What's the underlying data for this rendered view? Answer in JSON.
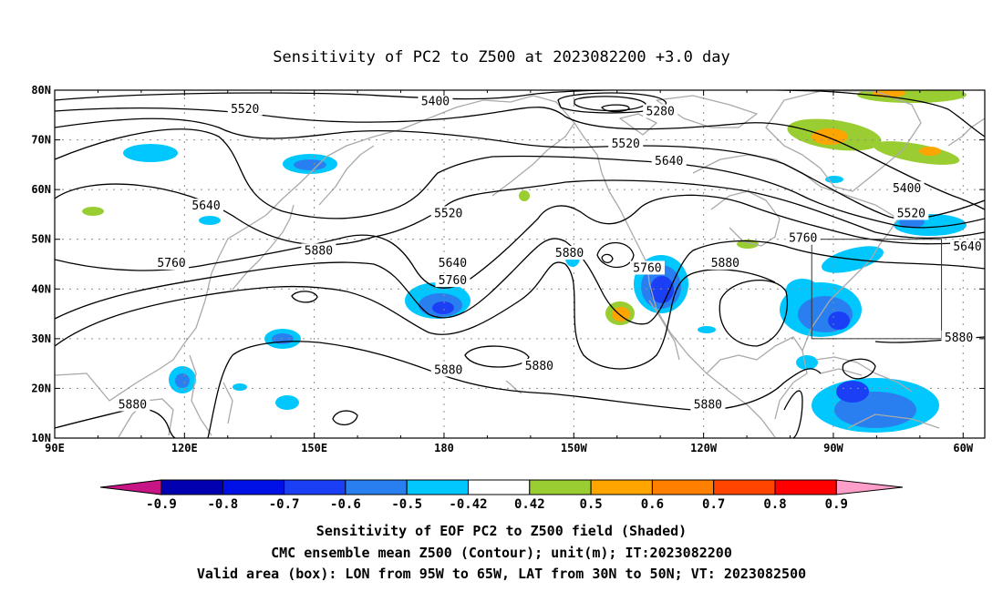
{
  "title": "Sensitivity of PC2 to Z500 at 2023082200 +3.0 day",
  "lat_ticks": [
    "80N",
    "70N",
    "60N",
    "50N",
    "40N",
    "30N",
    "20N",
    "10N"
  ],
  "lon_ticks": [
    "90E",
    "120E",
    "150E",
    "180",
    "150W",
    "120W",
    "90W",
    "60W"
  ],
  "contour_labels": [
    {
      "text": "5520",
      "lon": 134,
      "lat": 76
    },
    {
      "text": "5400",
      "lon": 178,
      "lat": 77.5
    },
    {
      "text": "5280",
      "lon": -130,
      "lat": 75.5
    },
    {
      "text": "5520",
      "lon": -138,
      "lat": 69
    },
    {
      "text": "5640",
      "lon": -128,
      "lat": 65.5
    },
    {
      "text": "5400",
      "lon": -73,
      "lat": 60
    },
    {
      "text": "5520",
      "lon": -72,
      "lat": 55
    },
    {
      "text": "5640",
      "lon": 125,
      "lat": 56.5
    },
    {
      "text": "5520",
      "lon": -179,
      "lat": 55
    },
    {
      "text": "5760",
      "lon": -97,
      "lat": 50
    },
    {
      "text": "5640",
      "lon": -59,
      "lat": 48.3
    },
    {
      "text": "5760",
      "lon": 117,
      "lat": 45
    },
    {
      "text": "5880",
      "lon": 151,
      "lat": 47.5
    },
    {
      "text": "5880",
      "lon": -151,
      "lat": 47
    },
    {
      "text": "5880",
      "lon": -115,
      "lat": 45
    },
    {
      "text": "5640",
      "lon": -178,
      "lat": 45
    },
    {
      "text": "5760",
      "lon": -178,
      "lat": 41.5
    },
    {
      "text": "5760",
      "lon": -133,
      "lat": 44
    },
    {
      "text": "5880",
      "lon": -61,
      "lat": 30
    },
    {
      "text": "5880",
      "lon": -179,
      "lat": 23.5
    },
    {
      "text": "5880",
      "lon": -158,
      "lat": 24.3
    },
    {
      "text": "5880",
      "lon": -119,
      "lat": 16.5
    },
    {
      "text": "5880",
      "lon": 108,
      "lat": 16.5
    }
  ],
  "colorbar": {
    "labels": [
      "-0.9",
      "-0.8",
      "-0.7",
      "-0.6",
      "-0.5",
      "-0.42",
      "0.42",
      "0.5",
      "0.6",
      "0.7",
      "0.8",
      "0.9"
    ],
    "colors": {
      "min_triangle": "#c71585",
      "bins": [
        "#0000b0",
        "#0011e8",
        "#1a3ff5",
        "#2a7ff0",
        "#00c8ff",
        "#ffffff",
        "#9acd32",
        "#ffa500",
        "#ff7f00",
        "#ff4500",
        "#ff0000"
      ],
      "max_triangle": "#ff9ec8"
    }
  },
  "caption": {
    "line1": "Sensitivity of EOF PC2 to Z500 field (Shaded)",
    "line2": "CMC ensemble mean Z500 (Contour); unit(m); IT:2023082200",
    "line3": "Valid area (box): LON from 95W to 65W, LAT from 30N to 50N; VT: 2023082500"
  },
  "valid_box": {
    "lon_min": -95,
    "lon_max": -65,
    "lat_min": 30,
    "lat_max": 50
  }
}
